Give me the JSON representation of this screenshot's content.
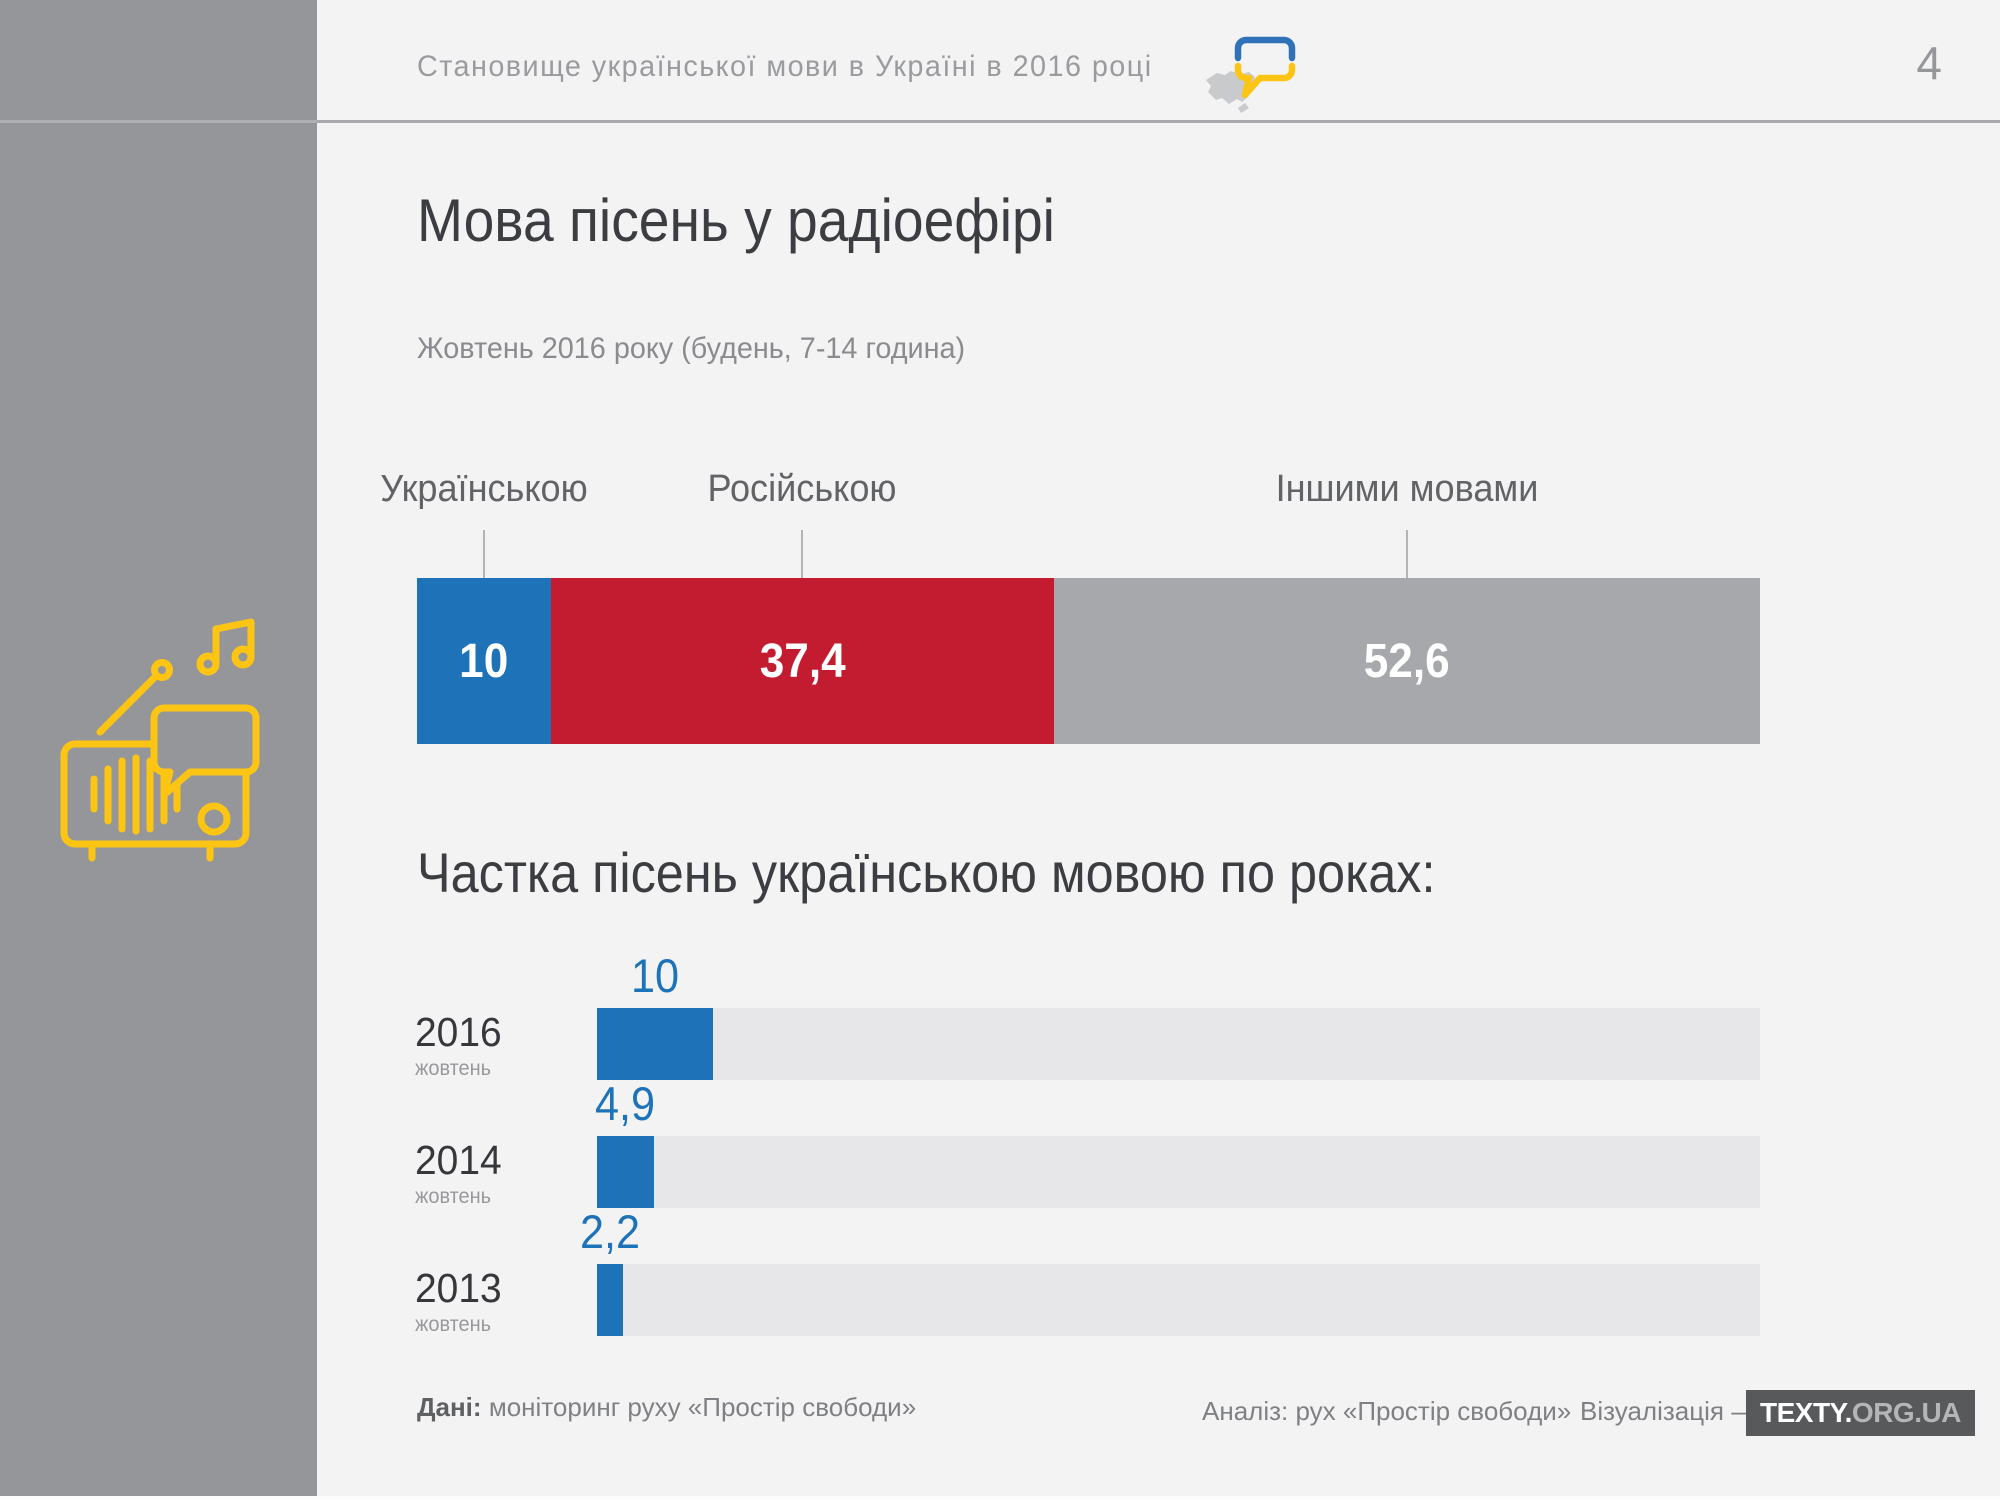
{
  "page": {
    "number": "4",
    "background_color": "#f3f3f4",
    "sidebar_color": "#95969a",
    "accent_blue": "#1d72b8",
    "accent_red": "#c31c30",
    "accent_gray": "#a7a8ac",
    "accent_yellow": "#fdc513"
  },
  "header": {
    "title": "Становище української мови в Україні в 2016 році"
  },
  "main": {
    "title": "Мова пісень у радіоефірі",
    "subtitle": "Жовтень 2016 року (будень, 7-14 година)",
    "section_title": "Частка пісень українською мовою по роках:"
  },
  "icons": {
    "sidebar": "radio-with-music-note-icon",
    "header": "speech-bubble-ukraine-flag-icon"
  },
  "chart_data": [
    {
      "type": "bar",
      "subtype": "horizontal-stacked",
      "title": "Мова пісень у радіоефірі",
      "subtitle": "Жовтень 2016 року (будень, 7-14 година)",
      "categories": [
        "Українською",
        "Російською",
        "Іншими мовами"
      ],
      "values": [
        10,
        37.4,
        52.6
      ],
      "value_labels": [
        "10",
        "37,4",
        "52,6"
      ],
      "colors": [
        "#1d72b8",
        "#c31c30",
        "#a7a8ac"
      ],
      "range": [
        0,
        100
      ],
      "unit": "percent"
    },
    {
      "type": "bar",
      "subtype": "horizontal",
      "title": "Частка пісень українською мовою по роках:",
      "categories": [
        "2016",
        "2014",
        "2013"
      ],
      "category_sublabels": [
        "жовтень",
        "жовтень",
        "жовтень"
      ],
      "values": [
        10,
        4.9,
        2.2
      ],
      "value_labels": [
        "10",
        "4,9",
        "2,2"
      ],
      "bar_color": "#1d72b8",
      "track_color": "#e7e7e9",
      "range": [
        0,
        100
      ],
      "unit": "percent"
    }
  ],
  "footer": {
    "data_label": "Дані:",
    "data_text": "моніторинг руху «Простір свободи»",
    "analysis_text": "Аналіз: рух «Простір свободи»",
    "viz_text": "Візуалізація —",
    "logo_primary": "TEXTY.",
    "logo_secondary": "ORG.UA"
  }
}
